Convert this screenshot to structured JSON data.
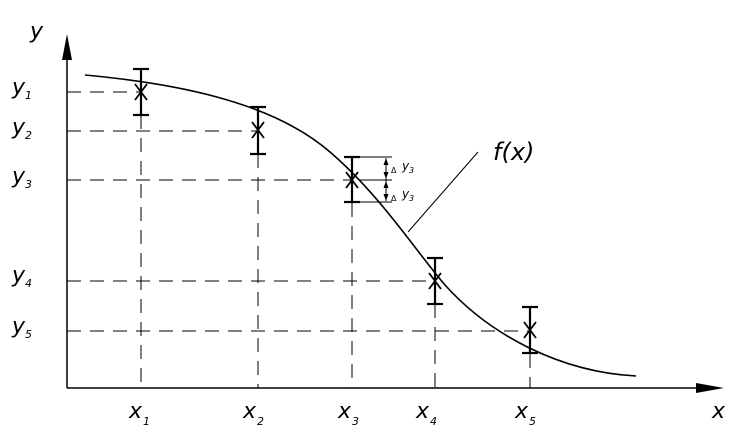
{
  "axes": {
    "y_label": "y",
    "x_label": "x"
  },
  "function_label": "f(x)",
  "points": [
    {
      "x_label": "x",
      "x_sub": "1",
      "y_label": "y",
      "y_sub": "1"
    },
    {
      "x_label": "x",
      "x_sub": "2",
      "y_label": "y",
      "y_sub": "2"
    },
    {
      "x_label": "x",
      "x_sub": "3",
      "y_label": "y",
      "y_sub": "3"
    },
    {
      "x_label": "x",
      "x_sub": "4",
      "y_label": "y",
      "y_sub": "4"
    },
    {
      "x_label": "x",
      "x_sub": "5",
      "y_label": "y",
      "y_sub": "5"
    }
  ],
  "error_annotation": {
    "delta": "Δ",
    "symbol": "y",
    "sub": "3"
  }
}
